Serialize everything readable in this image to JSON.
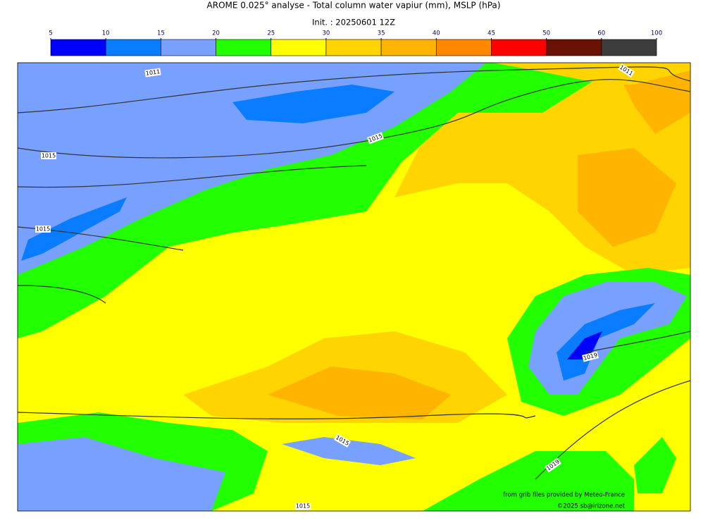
{
  "header": {
    "title": "AROME 0.025° analyse - Total column water vapiur (mm), MSLP (hPa)",
    "subtitle": "Init. : 20250601 12Z"
  },
  "colorbar": {
    "ticks": [
      5,
      10,
      15,
      20,
      25,
      30,
      35,
      40,
      45,
      50,
      60,
      100
    ],
    "colors": [
      "#0000ff",
      "#0a7cff",
      "#78a0ff",
      "#22ff00",
      "#ffff00",
      "#ffd400",
      "#ffb400",
      "#ff8800",
      "#ff0000",
      "#6a1206",
      "#3c3c3c"
    ]
  },
  "isobar_labels": [
    "1011",
    "1011",
    "1015",
    "1015",
    "1015",
    "1015",
    "1015",
    "1019",
    "1019"
  ],
  "credits": [
    "from grib files provided by Meteo-France",
    "©2025 sb@irizone.net"
  ]
}
